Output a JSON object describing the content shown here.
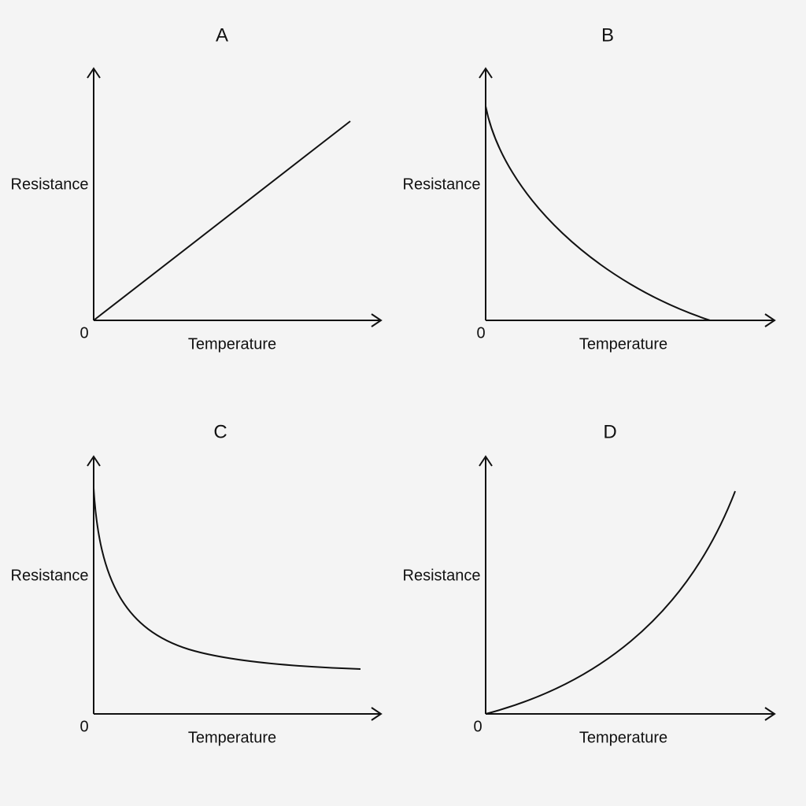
{
  "panels": [
    {
      "title": "A",
      "y_label": "Resistance",
      "x_label": "Temperature",
      "origin": "0"
    },
    {
      "title": "B",
      "y_label": "Resistance",
      "x_label": "Temperature",
      "origin": "0"
    },
    {
      "title": "C",
      "y_label": "Resistance",
      "x_label": "Temperature",
      "origin": "0"
    },
    {
      "title": "D",
      "y_label": "Resistance",
      "x_label": "Temperature",
      "origin": "0"
    }
  ]
}
